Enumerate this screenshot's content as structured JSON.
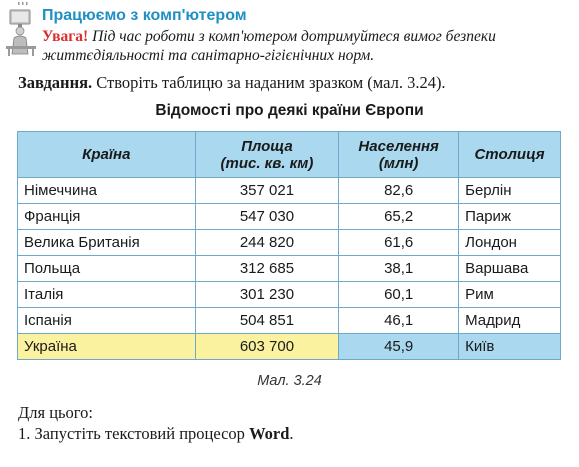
{
  "header": {
    "section_title": "Працюємо з комп'ютером",
    "warning_label": "Увага!",
    "warning_text": "Під час роботи з комп'ютером дотримуйтеся вимог безпеки життєдіяльності та санітарно-гігієнічних норм.",
    "icon": "person-at-computer-icon"
  },
  "task": {
    "label": "Завдання.",
    "text": "Створіть таблицю за наданим зразком (мал. 3.24)."
  },
  "table": {
    "title": "Відомості про деякі країни Європи",
    "headers": {
      "country": "Країна",
      "area_line1": "Площа",
      "area_line2": "(тис. кв. км)",
      "population_line1": "Населення",
      "population_line2": "(млн)",
      "capital": "Столиця"
    },
    "rows": [
      {
        "country": "Німеччина",
        "area": "357 021",
        "population": "82,6",
        "capital": "Берлін"
      },
      {
        "country": "Франція",
        "area": "547 030",
        "population": "65,2",
        "capital": "Париж"
      },
      {
        "country": "Велика Британія",
        "area": "244 820",
        "population": "61,6",
        "capital": "Лондон"
      },
      {
        "country": "Польща",
        "area": "312 685",
        "population": "38,1",
        "capital": "Варшава"
      },
      {
        "country": "Італія",
        "area": "301 230",
        "population": "60,1",
        "capital": "Рим"
      },
      {
        "country": "Іспанія",
        "area": "504 851",
        "population": "46,1",
        "capital": "Мадрид"
      },
      {
        "country": "Україна",
        "area": "603 700",
        "population": "45,9",
        "capital": "Київ"
      }
    ],
    "colors": {
      "header_bg": "#a9d8ef",
      "highlight_yellow": "#fbf2a0",
      "highlight_blue": "#a9d8ef",
      "border": "#6fa9c9"
    }
  },
  "caption": "Мал. 3.24",
  "steps": {
    "intro": "Для цього:",
    "step1_prefix": "1. Запустіть текстовий процесор ",
    "step1_app": "Word",
    "step1_suffix": "."
  }
}
